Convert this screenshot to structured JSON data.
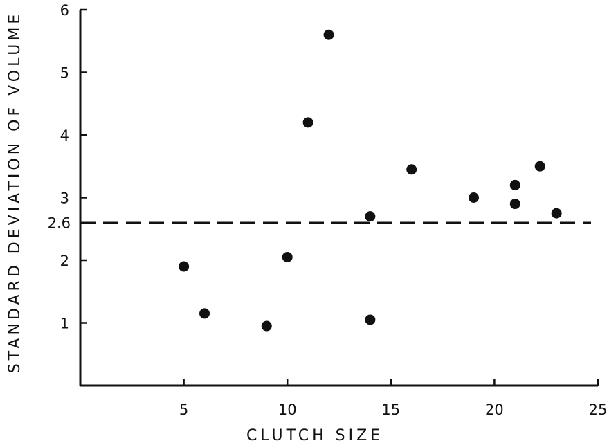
{
  "chart_data": {
    "type": "scatter",
    "title": "",
    "xlabel": "CLUTCH SIZE",
    "ylabel": "STANDARD DEVIATION OF VOLUME",
    "xlim": [
      0,
      25
    ],
    "ylim": [
      0,
      6
    ],
    "x_ticks": [
      5,
      10,
      15,
      20,
      25
    ],
    "y_ticks": [
      1,
      2,
      3,
      4,
      5,
      6
    ],
    "grid": false,
    "reference_line": {
      "y": 2.6,
      "label": "2.6",
      "style": "dashed"
    },
    "points": [
      {
        "x": 5,
        "y": 1.9
      },
      {
        "x": 6,
        "y": 1.15
      },
      {
        "x": 9,
        "y": 0.95
      },
      {
        "x": 10,
        "y": 2.05
      },
      {
        "x": 11,
        "y": 4.2
      },
      {
        "x": 12,
        "y": 5.6
      },
      {
        "x": 14,
        "y": 1.05
      },
      {
        "x": 14,
        "y": 2.7
      },
      {
        "x": 16,
        "y": 3.45
      },
      {
        "x": 19,
        "y": 3.0
      },
      {
        "x": 21,
        "y": 3.2
      },
      {
        "x": 21,
        "y": 2.9
      },
      {
        "x": 22.2,
        "y": 3.5
      },
      {
        "x": 23,
        "y": 2.75
      }
    ]
  }
}
